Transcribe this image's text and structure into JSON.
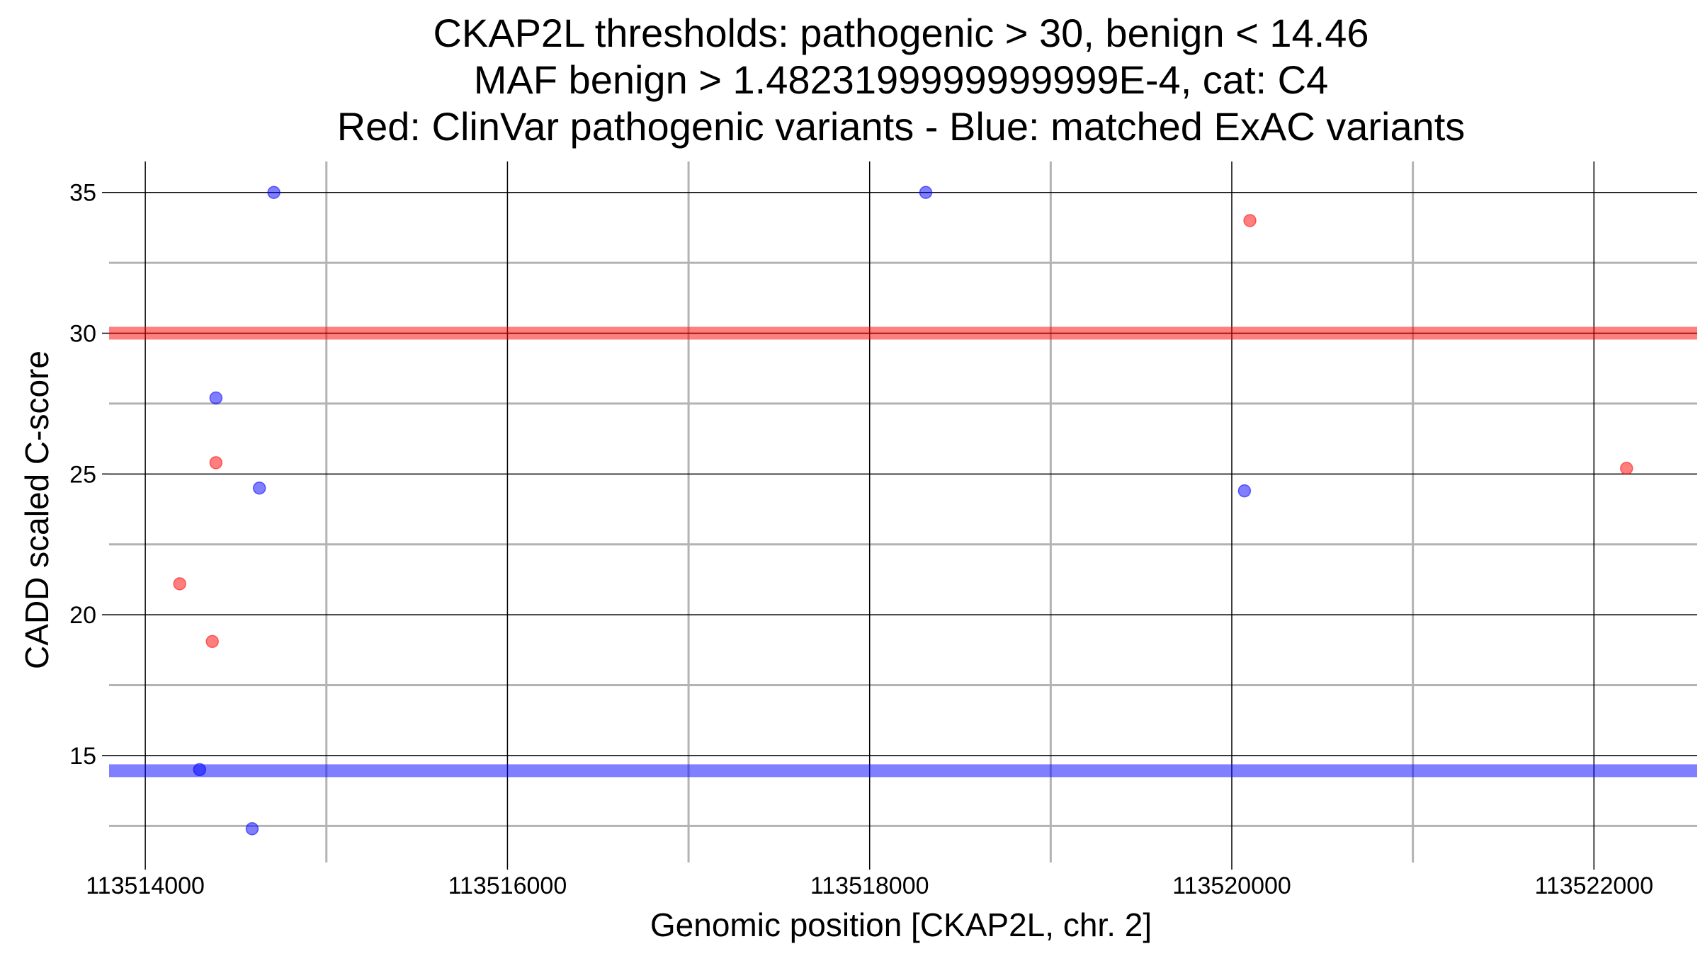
{
  "chart_data": {
    "type": "scatter",
    "title": [
      "CKAP2L thresholds: pathogenic > 30, benign < 14.46",
      "MAF benign > 1.4823199999999999E-4, cat: C4",
      "Red: ClinVar pathogenic variants - Blue: matched ExAC variants"
    ],
    "xlabel": "Genomic position [CKAP2L, chr. 2]",
    "ylabel": "CADD scaled C-score",
    "xlim": [
      113513800,
      113522570
    ],
    "ylim": [
      11.2,
      36.1
    ],
    "x_ticks": [
      113514000,
      113516000,
      113518000,
      113520000,
      113522000
    ],
    "x_tick_labels": [
      "113514000",
      "113516000",
      "113518000",
      "113520000",
      "113522000"
    ],
    "x_minor_gridlines": [
      113515000,
      113517000,
      113519000,
      113521000
    ],
    "y_ticks": [
      15,
      20,
      25,
      30,
      35
    ],
    "y_tick_labels": [
      "15",
      "20",
      "25",
      "30",
      "35"
    ],
    "y_minor_gridlines": [
      12.5,
      17.5,
      22.5,
      27.5,
      32.5
    ],
    "grid": true,
    "thresholds": [
      {
        "y": 30,
        "color": "#ff0000",
        "label": "pathogenic threshold"
      },
      {
        "y": 14.46,
        "color": "#0000ff",
        "label": "benign threshold"
      }
    ],
    "series": [
      {
        "name": "ClinVar pathogenic variants",
        "color": "#ff0000",
        "points": [
          {
            "x": 113514190,
            "y": 21.1
          },
          {
            "x": 113514370,
            "y": 19.05
          },
          {
            "x": 113514390,
            "y": 25.4
          },
          {
            "x": 113520100,
            "y": 34.0
          },
          {
            "x": 113522180,
            "y": 25.2
          }
        ]
      },
      {
        "name": "matched ExAC variants",
        "color": "#0000ff",
        "points": [
          {
            "x": 113514300,
            "y": 14.5
          },
          {
            "x": 113514390,
            "y": 27.7
          },
          {
            "x": 113514590,
            "y": 12.4
          },
          {
            "x": 113514630,
            "y": 24.5
          },
          {
            "x": 113514710,
            "y": 35.0
          },
          {
            "x": 113518310,
            "y": 35.0
          },
          {
            "x": 113520070,
            "y": 24.4
          }
        ]
      }
    ]
  }
}
